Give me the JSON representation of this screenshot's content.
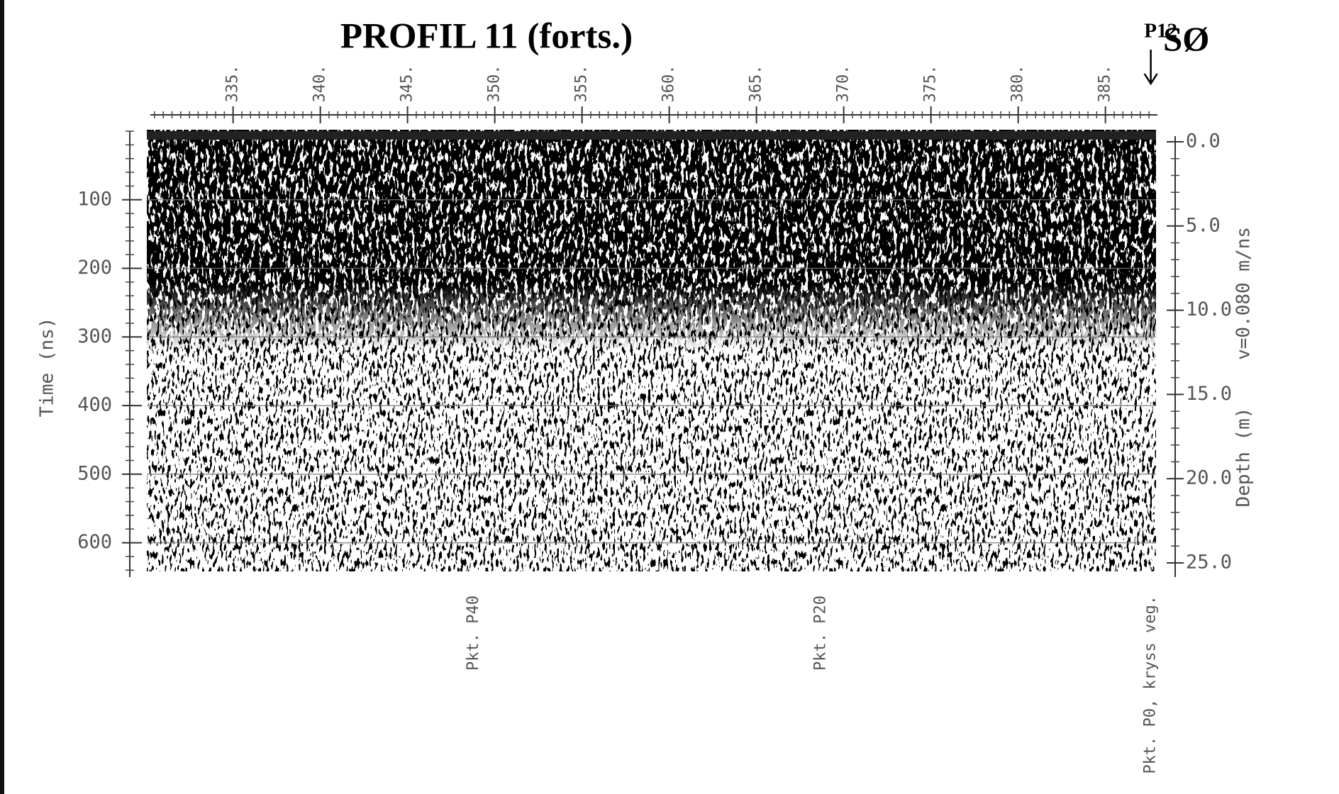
{
  "chart_data": {
    "type": "radargram",
    "title": "PROFIL 11 (forts.)",
    "marker": {
      "text": "P12",
      "x": 387.6
    },
    "direction": "SØ",
    "xlim": [
      330.3,
      387.9
    ],
    "xticks": [
      {
        "value": 335,
        "label": "335."
      },
      {
        "value": 340,
        "label": "340."
      },
      {
        "value": 345,
        "label": "345."
      },
      {
        "value": 350,
        "label": "350."
      },
      {
        "value": 355,
        "label": "355."
      },
      {
        "value": 360,
        "label": "360."
      },
      {
        "value": 365,
        "label": "365."
      },
      {
        "value": 370,
        "label": "370."
      },
      {
        "value": 375,
        "label": "375."
      },
      {
        "value": 380,
        "label": "380."
      },
      {
        "value": 385,
        "label": "385."
      }
    ],
    "ylabel": "Time (ns)",
    "ylim": [
      0,
      650
    ],
    "yticks": [
      100,
      200,
      300,
      400,
      500,
      600
    ],
    "y2label": "Depth (m)",
    "y2lim": [
      0,
      25
    ],
    "y2ticks": [
      {
        "value": 0,
        "label": "0.0"
      },
      {
        "value": 5,
        "label": "5.0"
      },
      {
        "value": 10,
        "label": "10.0"
      },
      {
        "value": 15,
        "label": "15.0"
      },
      {
        "value": 20,
        "label": "20.0"
      },
      {
        "value": 25,
        "label": "25.0"
      }
    ],
    "velocity_label": "v=0.080 m/ns",
    "grid": true,
    "annotations": [
      {
        "text": "Pkt. P40",
        "x": 348.8
      },
      {
        "text": "Pkt. P20",
        "x": 368.7
      },
      {
        "text": "Pkt. P0, kryss veg.",
        "x": 387.6
      }
    ]
  }
}
